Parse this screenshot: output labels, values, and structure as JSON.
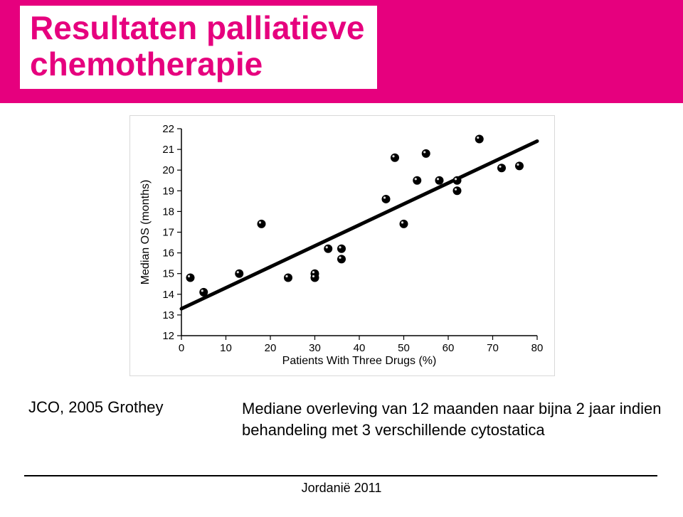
{
  "title": {
    "line1": "Resultaten palliatieve",
    "line2": "chemotherapie",
    "text_color": "#e6007e",
    "bg_color": "#ffffff",
    "bar_color": "#e6007e",
    "font_size": 46
  },
  "citation": "JCO, 2005 Grothey",
  "caption": "Mediane overleving van 12 maanden naar bijna 2 jaar indien behandeling met 3 verschillende cytostatica",
  "footer": "Jordanië 2011",
  "chart": {
    "type": "scatter",
    "xlabel": "Patients With Three Drugs (%)",
    "ylabel": "Median OS (months)",
    "xlim": [
      0,
      80
    ],
    "ylim": [
      12,
      22
    ],
    "xticks": [
      0,
      10,
      20,
      30,
      40,
      50,
      60,
      70,
      80
    ],
    "yticks": [
      12,
      13,
      14,
      15,
      16,
      17,
      18,
      19,
      20,
      21,
      22
    ],
    "background_color": "#ffffff",
    "axis_color": "#000000",
    "tick_fontsize": 15,
    "label_fontsize": 16,
    "marker": {
      "shape": "circle",
      "radius": 6,
      "fill": "#000000",
      "highlight": "#ffffff"
    },
    "regression_line": {
      "x1": 0,
      "y1": 13.3,
      "x2": 80,
      "y2": 21.4,
      "stroke": "#000000",
      "stroke_width": 5
    },
    "points": [
      {
        "x": 2,
        "y": 14.8
      },
      {
        "x": 5,
        "y": 14.1
      },
      {
        "x": 13,
        "y": 15.0
      },
      {
        "x": 18,
        "y": 17.4
      },
      {
        "x": 24,
        "y": 14.8
      },
      {
        "x": 30,
        "y": 15.0
      },
      {
        "x": 30,
        "y": 14.8
      },
      {
        "x": 33,
        "y": 16.2
      },
      {
        "x": 36,
        "y": 15.7
      },
      {
        "x": 36,
        "y": 16.2
      },
      {
        "x": 46,
        "y": 18.6
      },
      {
        "x": 48,
        "y": 20.6
      },
      {
        "x": 50,
        "y": 17.4
      },
      {
        "x": 53,
        "y": 19.5
      },
      {
        "x": 55,
        "y": 20.8
      },
      {
        "x": 58,
        "y": 19.5
      },
      {
        "x": 62,
        "y": 19.5
      },
      {
        "x": 62,
        "y": 19.0
      },
      {
        "x": 67,
        "y": 21.5
      },
      {
        "x": 72,
        "y": 20.1
      },
      {
        "x": 76,
        "y": 20.2
      }
    ]
  }
}
